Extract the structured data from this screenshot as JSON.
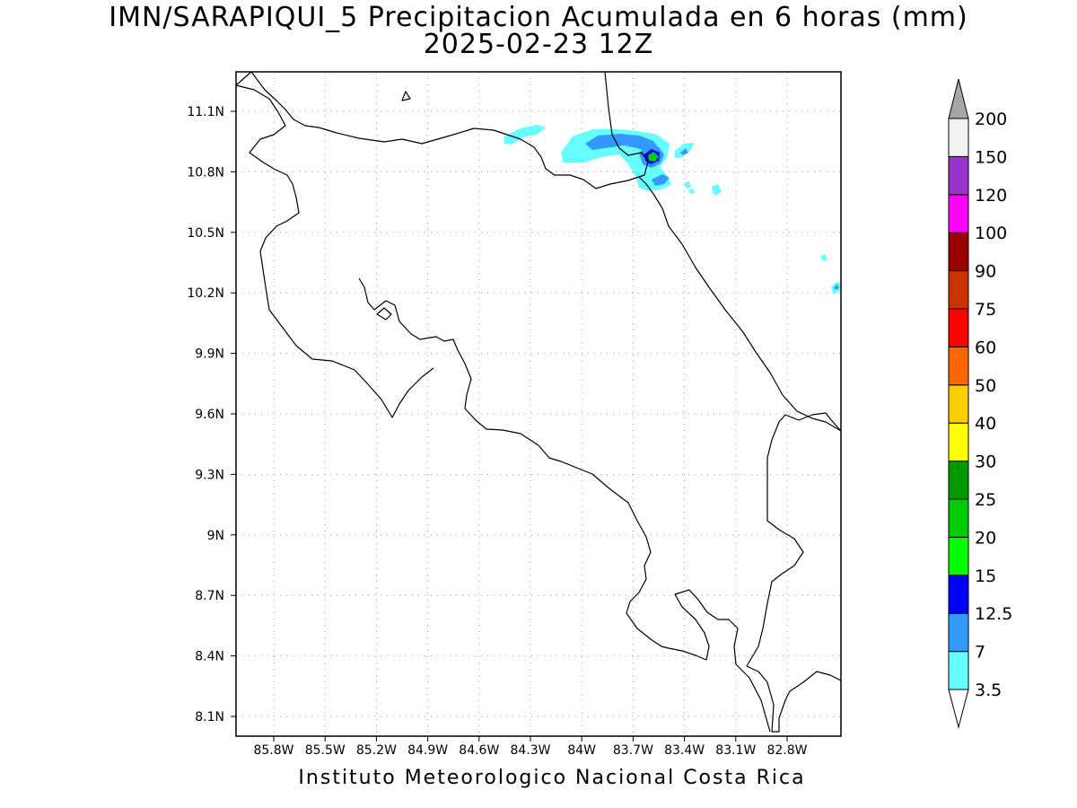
{
  "title_line1": "IMN/SARAPIQUI_5 Precipitacion Acumulada en 6 horas (mm)",
  "title_line2": "2025-02-23 12Z",
  "credit": "Instituto Meteorologico Nacional Costa Rica",
  "map": {
    "lon_labels": [
      "85.8W",
      "85.5W",
      "85.2W",
      "84.9W",
      "84.6W",
      "84.3W",
      "84W",
      "83.7W",
      "83.4W",
      "83.1W",
      "82.8W"
    ],
    "lat_labels": [
      "11.1N",
      "10.8N",
      "10.5N",
      "10.2N",
      "9.9N",
      "9.6N",
      "9.3N",
      "9N",
      "8.7N",
      "8.4N",
      "8.1N"
    ]
  },
  "colorbar": {
    "levels": [
      "3.5",
      "7",
      "12.5",
      "15",
      "20",
      "25",
      "30",
      "40",
      "50",
      "60",
      "75",
      "90",
      "100",
      "120",
      "150",
      "200"
    ],
    "colors": [
      "#66ffff",
      "#3399ff",
      "#0000ff",
      "#00ff00",
      "#00cc00",
      "#009900",
      "#ffff00",
      "#ffcc00",
      "#ff6600",
      "#ff0000",
      "#cc3300",
      "#990000",
      "#ff00ff",
      "#9933cc",
      "#f2f2f2",
      "#a6a6a6"
    ]
  }
}
